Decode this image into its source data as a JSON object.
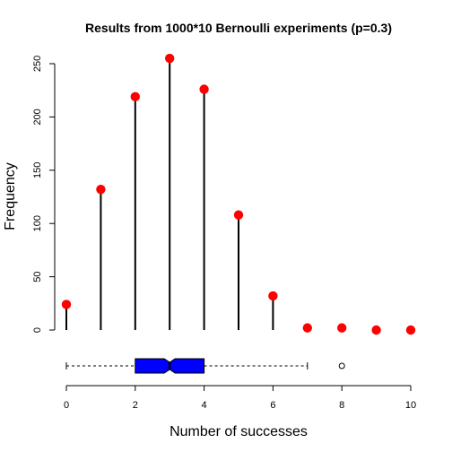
{
  "chart_data": {
    "type": "scatter",
    "title": "Results from 1000*10 Bernoulli experiments (p=0.3)",
    "xlabel": "Number of successes",
    "ylabel": "Frequency",
    "xlim": [
      0,
      10
    ],
    "ylim": [
      0,
      250
    ],
    "x_ticks": [
      0,
      2,
      4,
      6,
      8,
      10
    ],
    "y_ticks": [
      0,
      50,
      100,
      150,
      200,
      250
    ],
    "grid": false,
    "series": [
      {
        "x": [
          0,
          1,
          2,
          3,
          4,
          5,
          6,
          7,
          8,
          9,
          10
        ],
        "values": [
          24,
          132,
          219,
          255,
          226,
          108,
          32,
          2,
          2,
          0,
          0
        ]
      }
    ],
    "boxplot": {
      "whisker_low": 0,
      "q1": 2,
      "median": 3,
      "q3": 4,
      "whisker_high": 7,
      "outliers": [
        8
      ]
    },
    "colors": {
      "point": "#ff0000",
      "stem": "#000000",
      "box_fill": "#0000ff"
    }
  }
}
